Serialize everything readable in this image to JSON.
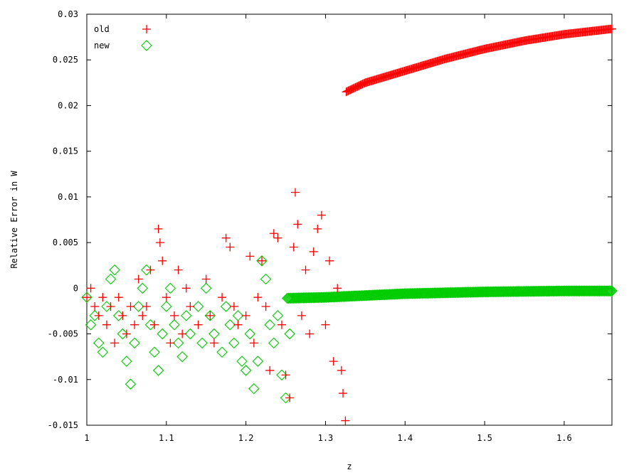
{
  "chart_data": {
    "type": "scatter",
    "title": "",
    "xlabel": "z",
    "ylabel": "Relative Error in W",
    "xlim": [
      1,
      1.66
    ],
    "ylim": [
      -0.015,
      0.03
    ],
    "x_ticks": [
      {
        "value": 1,
        "label": "1"
      },
      {
        "value": 1.1,
        "label": "1.1"
      },
      {
        "value": 1.2,
        "label": "1.2"
      },
      {
        "value": 1.3,
        "label": "1.3"
      },
      {
        "value": 1.4,
        "label": "1.4"
      },
      {
        "value": 1.5,
        "label": "1.5"
      },
      {
        "value": 1.6,
        "label": "1.6"
      }
    ],
    "y_ticks": [
      {
        "value": -0.015,
        "label": "-0.015"
      },
      {
        "value": -0.01,
        "label": "-0.01"
      },
      {
        "value": -0.005,
        "label": "-0.005"
      },
      {
        "value": 0,
        "label": "0"
      },
      {
        "value": 0.005,
        "label": "0.005"
      },
      {
        "value": 0.01,
        "label": "0.01"
      },
      {
        "value": 0.015,
        "label": "0.015"
      },
      {
        "value": 0.02,
        "label": "0.02"
      },
      {
        "value": 0.025,
        "label": "0.025"
      },
      {
        "value": 0.03,
        "label": "0.03"
      }
    ],
    "grid": false,
    "legend_position": "top-left",
    "series": [
      {
        "name": "old",
        "marker": "plus",
        "color": "#ff0000",
        "points": [
          [
            1.0,
            -0.001
          ],
          [
            1.005,
            0.0
          ],
          [
            1.01,
            -0.002
          ],
          [
            1.015,
            -0.003
          ],
          [
            1.02,
            -0.001
          ],
          [
            1.025,
            -0.004
          ],
          [
            1.03,
            -0.002
          ],
          [
            1.035,
            -0.006
          ],
          [
            1.04,
            -0.001
          ],
          [
            1.045,
            -0.003
          ],
          [
            1.05,
            -0.005
          ],
          [
            1.055,
            -0.002
          ],
          [
            1.06,
            -0.004
          ],
          [
            1.065,
            0.001
          ],
          [
            1.07,
            -0.003
          ],
          [
            1.075,
            -0.002
          ],
          [
            1.08,
            0.002
          ],
          [
            1.085,
            -0.004
          ],
          [
            1.09,
            0.0065
          ],
          [
            1.092,
            0.005
          ],
          [
            1.095,
            0.003
          ],
          [
            1.1,
            -0.001
          ],
          [
            1.105,
            -0.006
          ],
          [
            1.11,
            -0.003
          ],
          [
            1.115,
            0.002
          ],
          [
            1.12,
            -0.005
          ],
          [
            1.125,
            0.0
          ],
          [
            1.13,
            -0.002
          ],
          [
            1.14,
            -0.004
          ],
          [
            1.15,
            0.001
          ],
          [
            1.155,
            -0.003
          ],
          [
            1.16,
            -0.006
          ],
          [
            1.17,
            -0.001
          ],
          [
            1.175,
            0.0055
          ],
          [
            1.18,
            0.0045
          ],
          [
            1.185,
            -0.002
          ],
          [
            1.19,
            -0.004
          ],
          [
            1.2,
            -0.003
          ],
          [
            1.205,
            0.0035
          ],
          [
            1.21,
            -0.006
          ],
          [
            1.215,
            -0.001
          ],
          [
            1.22,
            0.003
          ],
          [
            1.225,
            -0.002
          ],
          [
            1.23,
            -0.009
          ],
          [
            1.235,
            0.006
          ],
          [
            1.24,
            0.0055
          ],
          [
            1.245,
            -0.004
          ],
          [
            1.25,
            -0.0095
          ],
          [
            1.255,
            -0.012
          ],
          [
            1.26,
            0.0045
          ],
          [
            1.262,
            0.0105
          ],
          [
            1.265,
            0.007
          ],
          [
            1.27,
            -0.003
          ],
          [
            1.275,
            0.002
          ],
          [
            1.28,
            -0.005
          ],
          [
            1.285,
            0.004
          ],
          [
            1.29,
            0.0065
          ],
          [
            1.295,
            0.008
          ],
          [
            1.3,
            -0.004
          ],
          [
            1.305,
            0.003
          ],
          [
            1.31,
            -0.008
          ],
          [
            1.315,
            0.0
          ],
          [
            1.32,
            -0.009
          ],
          [
            1.322,
            -0.0115
          ],
          [
            1.325,
            -0.0145
          ]
        ],
        "curve": {
          "comment": "dense curve of markers",
          "x_start": 1.326,
          "x_end": 1.66,
          "y_points": [
            [
              1.326,
              0.0215
            ],
            [
              1.35,
              0.0225
            ],
            [
              1.4,
              0.0238
            ],
            [
              1.45,
              0.0251
            ],
            [
              1.5,
              0.0262
            ],
            [
              1.55,
              0.0271
            ],
            [
              1.6,
              0.0278
            ],
            [
              1.66,
              0.0284
            ]
          ]
        }
      },
      {
        "name": "new",
        "marker": "diamond",
        "color": "#00cc00",
        "points": [
          [
            1.0,
            -0.001
          ],
          [
            1.005,
            -0.004
          ],
          [
            1.01,
            -0.003
          ],
          [
            1.015,
            -0.006
          ],
          [
            1.02,
            -0.007
          ],
          [
            1.025,
            -0.002
          ],
          [
            1.03,
            0.001
          ],
          [
            1.035,
            0.002
          ],
          [
            1.04,
            -0.003
          ],
          [
            1.045,
            -0.005
          ],
          [
            1.05,
            -0.008
          ],
          [
            1.055,
            -0.0105
          ],
          [
            1.06,
            -0.006
          ],
          [
            1.065,
            -0.002
          ],
          [
            1.07,
            0.0
          ],
          [
            1.075,
            0.002
          ],
          [
            1.08,
            -0.004
          ],
          [
            1.085,
            -0.007
          ],
          [
            1.09,
            -0.009
          ],
          [
            1.095,
            -0.005
          ],
          [
            1.1,
            -0.002
          ],
          [
            1.105,
            0.0
          ],
          [
            1.11,
            -0.004
          ],
          [
            1.115,
            -0.006
          ],
          [
            1.12,
            -0.0075
          ],
          [
            1.125,
            -0.003
          ],
          [
            1.13,
            -0.005
          ],
          [
            1.14,
            -0.002
          ],
          [
            1.145,
            -0.006
          ],
          [
            1.15,
            0.0
          ],
          [
            1.155,
            -0.003
          ],
          [
            1.16,
            -0.005
          ],
          [
            1.17,
            -0.007
          ],
          [
            1.175,
            -0.002
          ],
          [
            1.18,
            -0.004
          ],
          [
            1.185,
            -0.006
          ],
          [
            1.19,
            -0.003
          ],
          [
            1.195,
            -0.008
          ],
          [
            1.2,
            -0.009
          ],
          [
            1.205,
            -0.005
          ],
          [
            1.21,
            -0.011
          ],
          [
            1.215,
            -0.008
          ],
          [
            1.22,
            0.003
          ],
          [
            1.225,
            0.001
          ],
          [
            1.23,
            -0.004
          ],
          [
            1.235,
            -0.006
          ],
          [
            1.24,
            -0.003
          ],
          [
            1.245,
            -0.0095
          ],
          [
            1.25,
            -0.012
          ],
          [
            1.255,
            -0.005
          ]
        ],
        "curve": {
          "comment": "dense band of markers",
          "x_start": 1.252,
          "x_end": 1.66,
          "y_points": [
            [
              1.252,
              -0.0011
            ],
            [
              1.3,
              -0.001
            ],
            [
              1.4,
              -0.0006
            ],
            [
              1.5,
              -0.0004
            ],
            [
              1.6,
              -0.0003
            ],
            [
              1.66,
              -0.0003
            ]
          ]
        }
      }
    ]
  }
}
